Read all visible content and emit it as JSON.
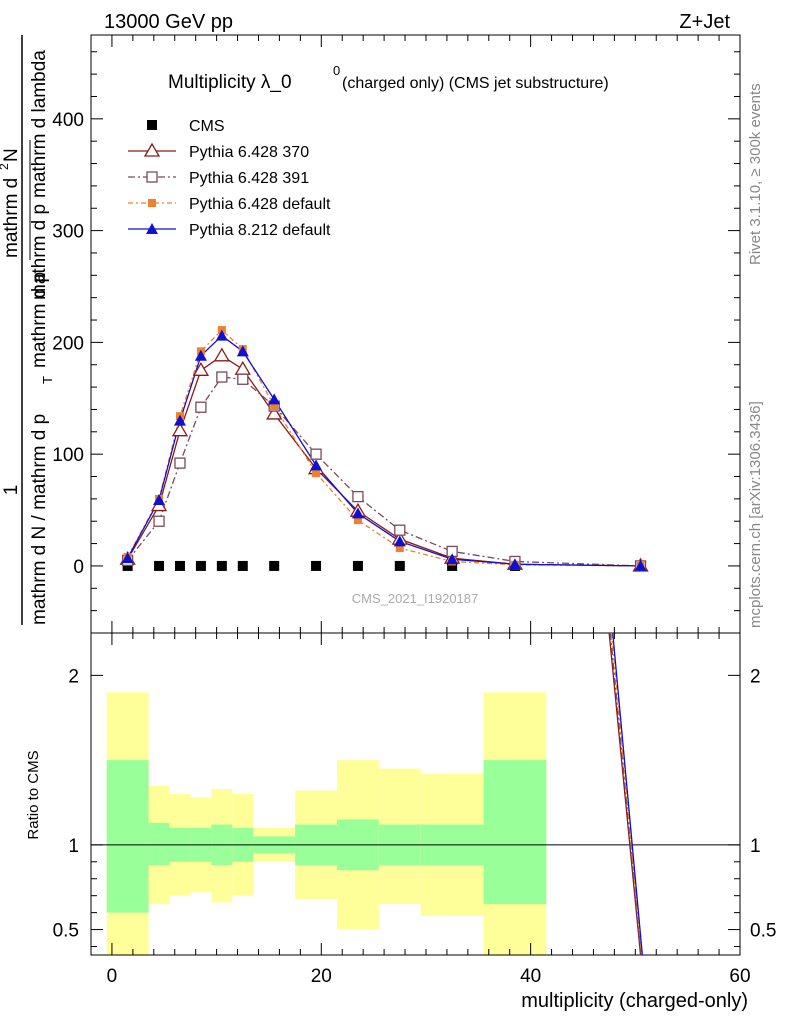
{
  "header": {
    "left": "13000 GeV pp",
    "right": "Z+Jet"
  },
  "side_labels": {
    "rivet": "Rivet 3.1.10, ≥ 300k events",
    "mcplots": "mcplots.cern.ch [arXiv:1306.3436]"
  },
  "chart_data": [
    {
      "type": "line",
      "title_main": "Multiplicity λ_0",
      "title_sup": "0",
      "title_rest": " (charged only) (CMS jet substructure)",
      "watermark": "CMS_2021_I1920187",
      "ylabel_num": "1",
      "ylabel_den": "mathrm d N / mathrm d p",
      "ylabel_den_sub": "T",
      "ylabel_den_rest": "mathrm d p",
      "ylabel_frac_top": "mathrm d",
      "ylabel_frac_sup": "2",
      "ylabel_frac_top2": "N",
      "ylabel_frac_bottom": "mathrm d p",
      "ylabel_frac_bottom2": "mathrm d lambda",
      "xlim": [
        -2,
        60
      ],
      "ylim": [
        -60,
        475
      ],
      "yticks": [
        0,
        100,
        200,
        300,
        400
      ],
      "legend": [
        "CMS",
        "Pythia 6.428 370",
        "Pythia 6.428 391",
        "Pythia 6.428 default",
        "Pythia 8.212 default"
      ],
      "x": [
        1.5,
        4.5,
        6.5,
        8.5,
        10.5,
        12.5,
        15.5,
        19.5,
        23.5,
        27.5,
        32.5,
        38.5,
        50.5
      ],
      "series": [
        {
          "name": "CMS",
          "values": [
            0,
            0,
            0,
            0,
            0,
            0,
            0,
            0,
            0,
            0,
            0,
            0,
            0
          ],
          "color": "#000000"
        },
        {
          "name": "Pythia 6.428 370",
          "values": [
            6,
            54,
            121,
            175,
            188,
            176,
            136,
            87,
            49,
            24,
            7,
            1.5,
            0
          ],
          "color": "#8b1a1a"
        },
        {
          "name": "Pythia 6.428 391",
          "values": [
            5,
            40,
            92,
            142,
            169,
            167,
            143,
            100,
            62,
            32,
            13,
            4,
            0
          ],
          "color": "#7a4a5a"
        },
        {
          "name": "Pythia 6.428 default",
          "values": [
            8,
            60,
            134,
            192,
            211,
            194,
            143,
            83,
            41,
            16,
            4,
            1,
            0
          ],
          "color": "#f0802a"
        },
        {
          "name": "Pythia 8.212 default",
          "values": [
            7,
            59,
            130,
            188,
            206,
            192,
            149,
            90,
            47,
            22,
            6,
            1.5,
            0
          ],
          "color": "#1010d0"
        }
      ]
    },
    {
      "type": "area",
      "ylabel": "Ratio to CMS",
      "xlabel": "multiplicity (charged-only)",
      "xlim": [
        -2,
        60
      ],
      "ylim": [
        0.35,
        2.25
      ],
      "yticks": [
        0.5,
        1,
        2
      ],
      "xticks": [
        0,
        20,
        40,
        60
      ],
      "bins": [
        [
          -0.5,
          3.5
        ],
        [
          3.5,
          5.5
        ],
        [
          5.5,
          7.5
        ],
        [
          7.5,
          9.5
        ],
        [
          9.5,
          11.5
        ],
        [
          11.5,
          13.5
        ],
        [
          13.5,
          17.5
        ],
        [
          17.5,
          21.5
        ],
        [
          21.5,
          25.5
        ],
        [
          25.5,
          29.5
        ],
        [
          29.5,
          35.5
        ],
        [
          35.5,
          41.5
        ]
      ],
      "band_inner": [
        [
          0.6,
          1.5
        ],
        [
          0.88,
          1.13
        ],
        [
          0.9,
          1.1
        ],
        [
          0.9,
          1.1
        ],
        [
          0.88,
          1.12
        ],
        [
          0.9,
          1.1
        ],
        [
          0.95,
          1.05
        ],
        [
          0.88,
          1.12
        ],
        [
          0.85,
          1.15
        ],
        [
          0.88,
          1.12
        ],
        [
          0.88,
          1.12
        ],
        [
          0.65,
          1.5
        ]
      ],
      "band_outer": [
        [
          0.35,
          1.9
        ],
        [
          0.65,
          1.35
        ],
        [
          0.7,
          1.3
        ],
        [
          0.72,
          1.28
        ],
        [
          0.66,
          1.33
        ],
        [
          0.7,
          1.3
        ],
        [
          0.9,
          1.1
        ],
        [
          0.68,
          1.32
        ],
        [
          0.5,
          1.5
        ],
        [
          0.65,
          1.45
        ],
        [
          0.58,
          1.42
        ],
        [
          0.35,
          1.9
        ]
      ],
      "ratio_lines_x": [
        47.5,
        50.5
      ],
      "ratio_lines_y": [
        2.25,
        0.35
      ]
    }
  ]
}
